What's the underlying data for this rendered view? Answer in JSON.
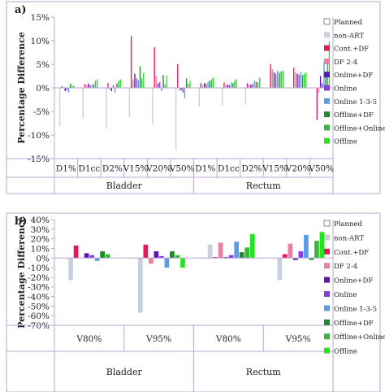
{
  "series_styles": [
    {
      "name": "Planned",
      "color": "#ffffff",
      "stroke": "#666666"
    },
    {
      "name": "non-ART",
      "color": "#c8d0dc"
    },
    {
      "name": "Cont.+DF",
      "color": "#e8175d"
    },
    {
      "name": "DF 2-4",
      "color": "#f07aa6"
    },
    {
      "name": "Online+DF",
      "color": "#5a17b5"
    },
    {
      "name": "Online",
      "color": "#8a3be6"
    },
    {
      "name": "Online 1-3-5",
      "color": "#5b9ce6"
    },
    {
      "name": "Offline+DF",
      "color": "#1a8c2a"
    },
    {
      "name": "Offline+Online",
      "color": "#35b83a"
    },
    {
      "name": "Offline",
      "color": "#22e61e"
    }
  ],
  "chart_data": [
    {
      "type": "bar",
      "panel_label": "a)",
      "ylabel": "Percentage Difference",
      "ylim": [
        -15,
        15
      ],
      "yticks": [
        "-15%",
        "-10%",
        "-5%",
        "0%",
        "5%",
        "10%",
        "15%"
      ],
      "ytick_values": [
        -15,
        -10,
        -5,
        0,
        5,
        10,
        15
      ],
      "categories": [
        "D1%",
        "D1cc",
        "D2%",
        "V15%",
        "V20%",
        "V50%",
        "D1%",
        "D1cc",
        "D2%",
        "V15%",
        "V20%",
        "V50%"
      ],
      "groups": [
        {
          "label": "Bladder",
          "start": 0,
          "end": 6
        },
        {
          "label": "Rectum",
          "start": 6,
          "end": 12
        }
      ],
      "series": [
        {
          "name": "Planned",
          "values": [
            0,
            0,
            0,
            0,
            0,
            0,
            0,
            0,
            0,
            0,
            0,
            0
          ]
        },
        {
          "name": "non-ART",
          "values": [
            -8.2,
            -6.5,
            -8.7,
            -6.2,
            -7.7,
            -13.2,
            -4.0,
            -3.7,
            -3.6,
            0,
            0,
            0
          ]
        },
        {
          "name": "Cont.+DF",
          "values": [
            0.3,
            0.8,
            1.0,
            11.0,
            8.6,
            5.0,
            1.0,
            1.1,
            1.0,
            5.0,
            4.3,
            -6.8
          ]
        },
        {
          "name": "DF 2-4",
          "values": [
            0.2,
            0.5,
            -0.4,
            1.8,
            2.5,
            -0.6,
            0.6,
            0.5,
            0.6,
            3.9,
            3.2,
            -1.0
          ]
        },
        {
          "name": "Online+DF",
          "values": [
            -0.7,
            0.9,
            -0.7,
            3.0,
            0.9,
            -0.5,
            1.0,
            0.7,
            0.7,
            3.3,
            3.0,
            2.5
          ]
        },
        {
          "name": "Online",
          "values": [
            -0.5,
            0.6,
            0.6,
            2.0,
            1.2,
            -1.0,
            0.8,
            0.6,
            0.8,
            3.0,
            2.8,
            1.0
          ]
        },
        {
          "name": "Online 1-3-5",
          "values": [
            -1.0,
            0.5,
            -1.0,
            1.6,
            -0.7,
            -2.2,
            1.2,
            1.2,
            1.5,
            3.6,
            3.4,
            5.5
          ]
        },
        {
          "name": "Offline+DF",
          "values": [
            0.9,
            0.8,
            0.9,
            4.6,
            2.7,
            2.0,
            1.5,
            1.0,
            1.3,
            3.2,
            2.7,
            3.0
          ]
        },
        {
          "name": "Offline+Online",
          "values": [
            0.4,
            1.5,
            1.5,
            2.0,
            0.8,
            0.8,
            1.8,
            1.5,
            1.2,
            3.5,
            3.0,
            5.8
          ]
        },
        {
          "name": "Offline",
          "values": [
            0.5,
            1.8,
            1.8,
            3.2,
            2.6,
            1.5,
            2.2,
            1.9,
            2.2,
            3.6,
            3.3,
            9.8
          ]
        }
      ],
      "legend": "right",
      "grid": false
    },
    {
      "type": "bar",
      "panel_label": "b)",
      "ylabel": "Percentage Difference",
      "ylim": [
        -70,
        40
      ],
      "yticks": [
        "-70%",
        "-60%",
        "-50%",
        "-40%",
        "-30%",
        "-20%",
        "-10%",
        "0%",
        "10%",
        "20%",
        "30%",
        "40%"
      ],
      "ytick_values": [
        -70,
        -60,
        -50,
        -40,
        -30,
        -20,
        -10,
        0,
        10,
        20,
        30,
        40
      ],
      "categories": [
        "V80%",
        "V95%",
        "V80%",
        "V95%"
      ],
      "groups": [
        {
          "label": "Bladder",
          "start": 0,
          "end": 2
        },
        {
          "label": "Rectum",
          "start": 2,
          "end": 4
        }
      ],
      "series": [
        {
          "name": "Planned",
          "values": [
            0,
            0,
            0,
            0
          ]
        },
        {
          "name": "non-ART",
          "values": [
            -23,
            -57,
            14,
            -23
          ]
        },
        {
          "name": "Cont.+DF",
          "values": [
            13,
            14,
            1,
            4
          ]
        },
        {
          "name": "DF 2-4",
          "values": [
            0,
            -6,
            16,
            15
          ]
        },
        {
          "name": "Online+DF",
          "values": [
            5,
            7,
            1,
            -2
          ]
        },
        {
          "name": "Online",
          "values": [
            3,
            2,
            3,
            7
          ]
        },
        {
          "name": "Online 1-3-5",
          "values": [
            -3,
            -10,
            17,
            24
          ]
        },
        {
          "name": "Offline+DF",
          "values": [
            7,
            7,
            6,
            -2
          ]
        },
        {
          "name": "Offline+Online",
          "values": [
            4,
            3,
            11,
            18
          ]
        },
        {
          "name": "Offline",
          "values": [
            0,
            -10,
            25,
            27
          ]
        }
      ],
      "legend": "right",
      "grid": false
    }
  ]
}
